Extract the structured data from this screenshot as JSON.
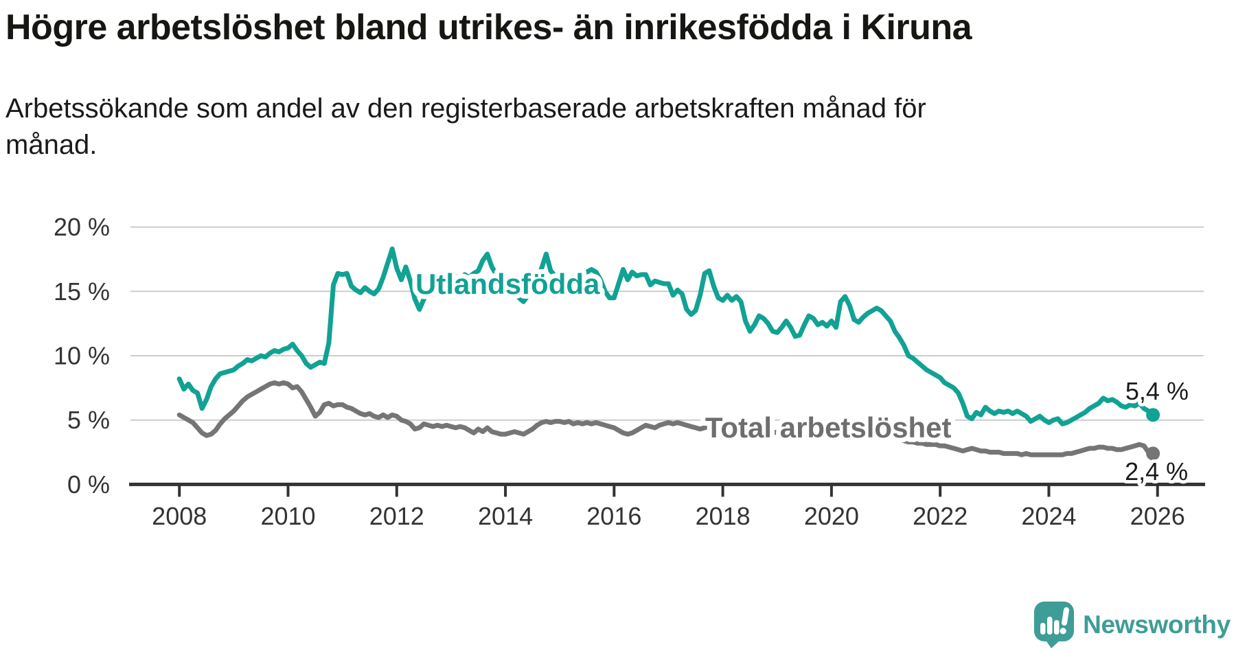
{
  "title": "Högre arbetslöshet bland utrikes- än inrikesfödda i Kiruna",
  "subtitle": "Arbetssökande som andel av den registerbaserade arbetskraften månad för\nmånad.",
  "branding": {
    "name": "Newsworthy",
    "color": "#3e9d96"
  },
  "colors": {
    "foreign_born_line": "#11a294",
    "total_line": "#757575",
    "total_label": "#6e6e6e",
    "value_label": "#1a1a1a",
    "axis": "#333333",
    "gridline": "#cccccc",
    "tick_text": "#333333"
  },
  "chart_data": {
    "type": "line",
    "unit": "%",
    "x_interval": "monthly",
    "x_start_year": 2008,
    "x_end": "2025-12",
    "xlim": [
      2007.1,
      2026.85
    ],
    "ylim": [
      0,
      20
    ],
    "grid": "horizontal",
    "legend_position": "inline-labels",
    "y_ticks": [
      0,
      5,
      10,
      15,
      20
    ],
    "y_tick_labels": [
      "0 %",
      "5 %",
      "10 %",
      "15 %",
      "20 %"
    ],
    "x_ticks": [
      2008,
      2010,
      2012,
      2014,
      2016,
      2018,
      2020,
      2022,
      2024,
      2026
    ],
    "x_tick_labels": [
      "2008",
      "2010",
      "2012",
      "2014",
      "2016",
      "2018",
      "2020",
      "2022",
      "2024",
      "2026"
    ],
    "series": [
      {
        "name": "Total arbetslöshet",
        "color": "#757575",
        "end_value_label": "2,4 %",
        "end_marker": true,
        "values": [
          5.4,
          5.2,
          5.0,
          4.8,
          4.4,
          4.0,
          3.8,
          3.9,
          4.2,
          4.7,
          5.1,
          5.4,
          5.7,
          6.1,
          6.5,
          6.8,
          7.0,
          7.2,
          7.4,
          7.6,
          7.8,
          7.9,
          7.8,
          7.9,
          7.8,
          7.5,
          7.6,
          7.2,
          6.6,
          6.0,
          5.3,
          5.6,
          6.2,
          6.3,
          6.1,
          6.2,
          6.2,
          6.0,
          5.9,
          5.7,
          5.5,
          5.4,
          5.5,
          5.3,
          5.2,
          5.4,
          5.2,
          5.4,
          5.3,
          5.0,
          4.9,
          4.7,
          4.3,
          4.4,
          4.7,
          4.6,
          4.5,
          4.6,
          4.5,
          4.6,
          4.5,
          4.4,
          4.5,
          4.4,
          4.2,
          4.0,
          4.3,
          4.1,
          4.4,
          4.1,
          4.0,
          3.9,
          3.9,
          4.0,
          4.1,
          4.0,
          3.9,
          4.1,
          4.3,
          4.6,
          4.8,
          4.9,
          4.8,
          4.9,
          4.9,
          4.8,
          4.9,
          4.7,
          4.8,
          4.7,
          4.8,
          4.7,
          4.8,
          4.7,
          4.6,
          4.5,
          4.4,
          4.2,
          4.0,
          3.9,
          4.0,
          4.2,
          4.4,
          4.6,
          4.5,
          4.4,
          4.6,
          4.7,
          4.8,
          4.7,
          4.8,
          4.7,
          4.6,
          4.5,
          4.4,
          4.3,
          4.4,
          4.5,
          4.4,
          4.5,
          4.4,
          4.5,
          4.4,
          4.3,
          4.4,
          4.2,
          4.1,
          4.2,
          4.0,
          4.1,
          4.0,
          4.1,
          4.0,
          4.1,
          4.0,
          3.9,
          3.8,
          3.9,
          4.0,
          3.9,
          3.8,
          3.9,
          3.8,
          3.9,
          3.9,
          3.8,
          4.2,
          4.5,
          4.6,
          4.5,
          4.4,
          4.3,
          4.2,
          4.1,
          4.0,
          3.9,
          3.8,
          3.7,
          3.6,
          3.5,
          3.4,
          3.3,
          3.3,
          3.2,
          3.2,
          3.1,
          3.1,
          3.1,
          3.0,
          3.0,
          2.9,
          2.8,
          2.7,
          2.6,
          2.7,
          2.8,
          2.7,
          2.6,
          2.6,
          2.5,
          2.5,
          2.5,
          2.4,
          2.4,
          2.4,
          2.4,
          2.3,
          2.4,
          2.3,
          2.3,
          2.3,
          2.3,
          2.3,
          2.3,
          2.3,
          2.3,
          2.4,
          2.4,
          2.5,
          2.6,
          2.7,
          2.8,
          2.8,
          2.9,
          2.9,
          2.8,
          2.8,
          2.7,
          2.7,
          2.8,
          2.9,
          3.0,
          3.1,
          3.0,
          2.5,
          2.4
        ]
      },
      {
        "name": "Utlandsfödda",
        "color": "#11a294",
        "end_value_label": "5,4 %",
        "end_marker": true,
        "values": [
          8.2,
          7.4,
          7.8,
          7.3,
          7.1,
          5.9,
          6.6,
          7.6,
          8.2,
          8.6,
          8.7,
          8.8,
          8.9,
          9.2,
          9.4,
          9.7,
          9.6,
          9.8,
          10.0,
          9.9,
          10.2,
          10.4,
          10.3,
          10.5,
          10.6,
          10.9,
          10.4,
          10.0,
          9.4,
          9.1,
          9.3,
          9.5,
          9.4,
          11.0,
          15.5,
          16.4,
          16.3,
          16.4,
          15.4,
          15.1,
          14.9,
          15.3,
          15.0,
          14.8,
          15.2,
          16.1,
          17.2,
          18.3,
          16.8,
          15.9,
          16.9,
          15.8,
          14.4,
          13.6,
          14.4,
          15.2,
          15.6,
          15.9,
          15.7,
          16.0,
          15.8,
          16.2,
          16.0,
          16.3,
          16.1,
          16.4,
          16.6,
          17.4,
          17.9,
          16.9,
          16.3,
          16.0,
          15.6,
          15.2,
          14.9,
          14.5,
          14.2,
          14.7,
          15.3,
          16.0,
          16.8,
          17.9,
          16.6,
          16.2,
          16.0,
          15.7,
          15.9,
          16.2,
          16.0,
          16.3,
          16.5,
          16.7,
          16.5,
          15.9,
          15.0,
          14.5,
          14.5,
          15.6,
          16.7,
          15.9,
          16.5,
          16.2,
          16.3,
          16.3,
          15.5,
          15.8,
          15.7,
          15.6,
          15.6,
          14.7,
          15.1,
          14.8,
          13.6,
          13.2,
          13.5,
          14.7,
          16.4,
          16.6,
          15.4,
          14.5,
          14.3,
          14.7,
          14.3,
          14.6,
          14.2,
          12.7,
          11.9,
          12.4,
          13.1,
          12.9,
          12.5,
          11.9,
          11.8,
          12.2,
          12.7,
          12.2,
          11.5,
          11.6,
          12.4,
          13.1,
          12.9,
          12.4,
          12.6,
          12.3,
          12.7,
          12.2,
          14.2,
          14.6,
          13.9,
          12.8,
          12.6,
          13.0,
          13.3,
          13.5,
          13.7,
          13.5,
          13.1,
          12.7,
          11.9,
          11.4,
          10.8,
          10.0,
          9.8,
          9.5,
          9.2,
          8.9,
          8.7,
          8.5,
          8.3,
          7.9,
          7.7,
          7.5,
          7.1,
          6.3,
          5.3,
          5.1,
          5.6,
          5.4,
          6.0,
          5.7,
          5.5,
          5.7,
          5.6,
          5.7,
          5.5,
          5.7,
          5.5,
          5.3,
          4.9,
          5.1,
          5.3,
          5.0,
          4.8,
          5.0,
          5.1,
          4.7,
          4.8,
          5.0,
          5.2,
          5.4,
          5.6,
          5.9,
          6.1,
          6.3,
          6.7,
          6.5,
          6.6,
          6.4,
          6.1,
          6.0,
          6.2,
          6.1,
          6.3,
          5.9,
          5.7,
          5.4
        ]
      }
    ],
    "annotations": [
      {
        "kind": "series-label",
        "text": "Utlandsfödda",
        "x": 2014.04,
        "y": 14.8,
        "color": "#11a294"
      },
      {
        "kind": "series-label",
        "text": "Total arbetslöshet",
        "x": 2019.94,
        "y": 3.65,
        "color": "#6e6e6e"
      },
      {
        "kind": "value-label",
        "text": "5,4 %",
        "x": 2025.99,
        "y": 6.58,
        "color": "#1a1a1a"
      },
      {
        "kind": "value-label",
        "text": "2,4 %",
        "x": 2025.98,
        "y": 0.34,
        "color": "#1a1a1a"
      }
    ]
  }
}
